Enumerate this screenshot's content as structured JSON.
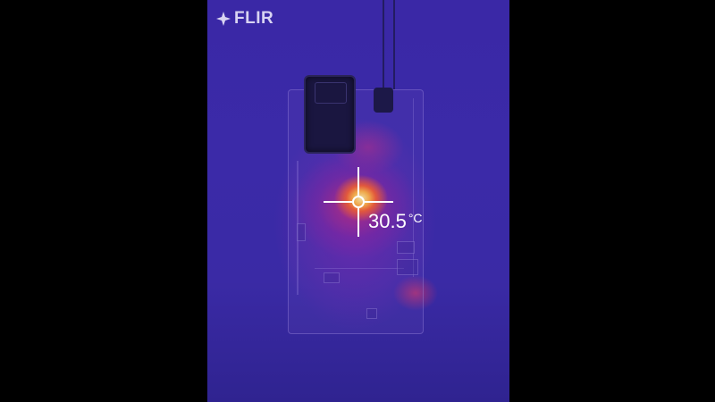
{
  "logo": {
    "text": "FLIR"
  },
  "measurement": {
    "value": "30.5",
    "unit": "°C"
  },
  "colors": {
    "background": "#000000",
    "thermal_base": "#3a28a6",
    "hotspot": "#ffb23a",
    "reticle": "#ffffff"
  },
  "icons": {
    "logo_mark": "flir-logo-icon",
    "reticle": "crosshair-icon"
  }
}
